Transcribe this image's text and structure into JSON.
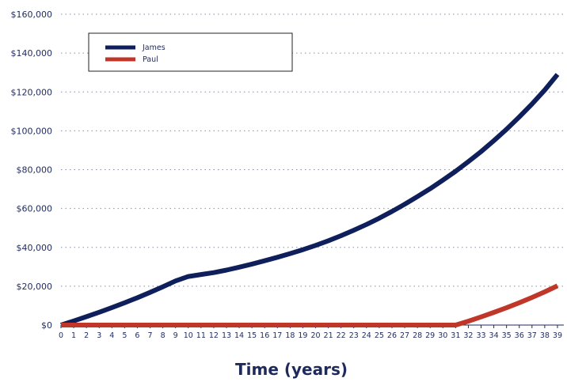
{
  "chart_data": {
    "type": "line",
    "title": "",
    "xlabel": "Time (years)",
    "ylabel": "",
    "xlim": [
      0,
      39.5
    ],
    "ylim": [
      0,
      160000
    ],
    "y_ticks": [
      "$0",
      "$20,000",
      "$40,000",
      "$60,000",
      "$80,000",
      "$100,000",
      "$120,000",
      "$140,000",
      "$160,000"
    ],
    "x": [
      0,
      1,
      2,
      3,
      4,
      5,
      6,
      7,
      8,
      9,
      10,
      11,
      12,
      13,
      14,
      15,
      16,
      17,
      18,
      19,
      20,
      21,
      22,
      23,
      24,
      25,
      26,
      27,
      28,
      29,
      30,
      31,
      32,
      33,
      34,
      35,
      36,
      37,
      38,
      39
    ],
    "grid": "horizontal-dotted",
    "legend_position": "top-left",
    "series": [
      {
        "name": "James",
        "color": "#0e1f5b",
        "values": [
          0,
          2100,
          4300,
          6600,
          9000,
          11500,
          14100,
          16800,
          19700,
          22700,
          25000,
          26000,
          27000,
          28300,
          29800,
          31400,
          33100,
          34900,
          36800,
          38800,
          41000,
          43400,
          46000,
          48800,
          51800,
          55000,
          58500,
          62200,
          66100,
          70200,
          74600,
          79200,
          84100,
          89300,
          94900,
          100800,
          107100,
          113800,
          121000,
          129000
        ]
      },
      {
        "name": "Paul",
        "color": "#c0372a",
        "values": [
          0,
          0,
          0,
          0,
          0,
          0,
          0,
          0,
          0,
          0,
          0,
          0,
          0,
          0,
          0,
          0,
          0,
          0,
          0,
          0,
          0,
          0,
          0,
          0,
          0,
          0,
          0,
          0,
          0,
          0,
          0,
          0,
          2000,
          4200,
          6500,
          8900,
          11500,
          14200,
          17100,
          20200
        ]
      }
    ]
  }
}
